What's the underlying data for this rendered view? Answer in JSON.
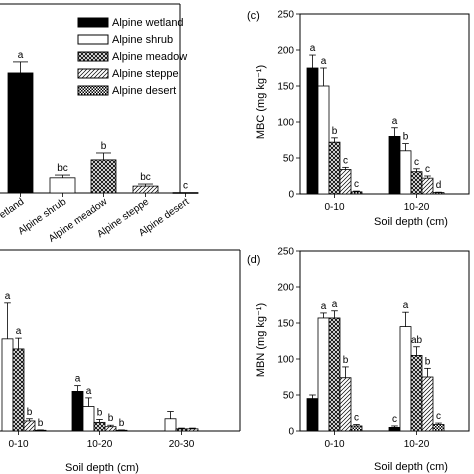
{
  "series_names": [
    "Alpine wetland",
    "Alpine shrub",
    "Alpine meadow",
    "Alpine steppe",
    "Alpine desert"
  ],
  "chart_data": [
    {
      "panel": "a",
      "panel_label": "",
      "type": "bar",
      "categories": [
        "Alpine wetland",
        "Alpine shrub",
        "Alpine meadow",
        "Alpine steppe",
        "Alpine desert"
      ],
      "tick_labels": [
        "etland",
        "Alpine shrub",
        "Alpine meadow",
        "Alpine steppe",
        "Alpine desert"
      ],
      "values": [
        87,
        11,
        24,
        5,
        0.3
      ],
      "errors": [
        8,
        2,
        5,
        1.5,
        0
      ],
      "letters": [
        "a",
        "bc",
        "b",
        "bc",
        "c"
      ],
      "ylim": [
        0,
        110
      ],
      "ylabel": "",
      "legend": "top-right"
    },
    {
      "panel": "c",
      "panel_label": "(c)",
      "type": "bar",
      "categories": [
        "0-10",
        "10-20"
      ],
      "xlabel": "Soil depth (cm)",
      "ylabel": "MBC (mg kg⁻¹)",
      "ylim": [
        0,
        250
      ],
      "yticks": [
        0,
        50,
        100,
        150,
        200,
        250
      ],
      "series": [
        {
          "name": "Alpine wetland",
          "values": [
            175,
            80
          ],
          "errors": [
            18,
            12
          ],
          "letters": [
            "a",
            "a"
          ]
        },
        {
          "name": "Alpine shrub",
          "values": [
            150,
            60
          ],
          "errors": [
            25,
            10
          ],
          "letters": [
            "a",
            "b"
          ]
        },
        {
          "name": "Alpine meadow",
          "values": [
            72,
            31
          ],
          "errors": [
            6,
            4
          ],
          "letters": [
            "b",
            "c"
          ]
        },
        {
          "name": "Alpine steppe",
          "values": [
            34,
            22
          ],
          "errors": [
            3,
            3
          ],
          "letters": [
            "c",
            "c"
          ]
        },
        {
          "name": "Alpine desert",
          "values": [
            3,
            2
          ],
          "errors": [
            1,
            0.5
          ],
          "letters": [
            "c",
            "d"
          ]
        }
      ]
    },
    {
      "panel": "b",
      "panel_label": "",
      "type": "bar",
      "categories": [
        "0-10",
        "10-20",
        "20-30"
      ],
      "xlabel": "Soil depth (cm)",
      "ylabel": "",
      "ylim": [
        0,
        250
      ],
      "series": [
        {
          "name": "Alpine wetland",
          "values": [
            null,
            55,
            null
          ],
          "errors": [
            null,
            8,
            null
          ],
          "letters": [
            "a",
            "a",
            ""
          ]
        },
        {
          "name": "Alpine shrub",
          "values": [
            128,
            34,
            17
          ],
          "errors": [
            50,
            12,
            10
          ],
          "letters": [
            "a",
            "a",
            ""
          ]
        },
        {
          "name": "Alpine meadow",
          "values": [
            114,
            12,
            3
          ],
          "errors": [
            15,
            4,
            1
          ],
          "letters": [
            "a",
            "b",
            ""
          ]
        },
        {
          "name": "Alpine steppe",
          "values": [
            14,
            6,
            3
          ],
          "errors": [
            3,
            2,
            1
          ],
          "letters": [
            "b",
            "b",
            ""
          ]
        },
        {
          "name": "Alpine desert",
          "values": [
            1,
            1,
            null
          ],
          "errors": [
            0.5,
            0.5,
            null
          ],
          "letters": [
            "b",
            "b",
            ""
          ]
        }
      ]
    },
    {
      "panel": "d",
      "panel_label": "(d)",
      "type": "bar",
      "categories": [
        "0-10",
        "10-20"
      ],
      "xlabel": "Soil depth (cm)",
      "ylabel": "MBN (mg kg⁻¹)",
      "ylim": [
        0,
        250
      ],
      "yticks": [
        0,
        50,
        100,
        150,
        200,
        250
      ],
      "series": [
        {
          "name": "Alpine wetland",
          "values": [
            45,
            5
          ],
          "errors": [
            5,
            2
          ],
          "letters": [
            "",
            "c"
          ]
        },
        {
          "name": "Alpine shrub",
          "values": [
            157,
            145
          ],
          "errors": [
            7,
            20
          ],
          "letters": [
            "a",
            "a"
          ]
        },
        {
          "name": "Alpine meadow",
          "values": [
            157,
            105
          ],
          "errors": [
            10,
            12
          ],
          "letters": [
            "a",
            "ab"
          ]
        },
        {
          "name": "Alpine steppe",
          "values": [
            74,
            75
          ],
          "errors": [
            15,
            12
          ],
          "letters": [
            "b",
            "b"
          ]
        },
        {
          "name": "Alpine desert",
          "values": [
            7,
            9
          ],
          "errors": [
            2,
            2
          ],
          "letters": [
            "c",
            "c"
          ]
        }
      ]
    }
  ]
}
